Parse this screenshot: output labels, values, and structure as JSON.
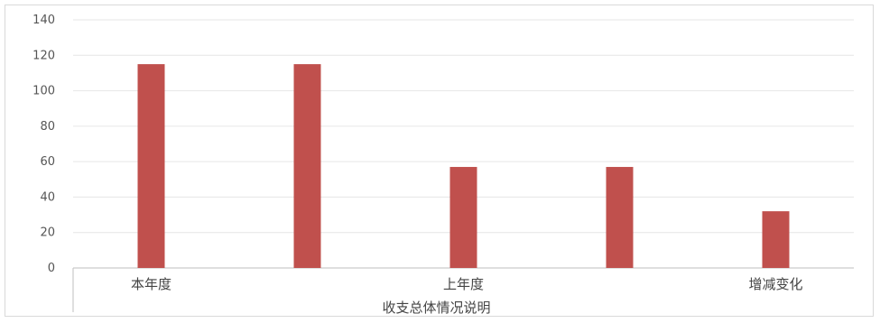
{
  "chart_data": {
    "type": "bar",
    "title": "",
    "xlabel": "收支总体情况说明",
    "ylabel": "",
    "ylim": [
      0,
      140
    ],
    "yticks": [
      0,
      20,
      40,
      60,
      80,
      100,
      120,
      140
    ],
    "grid": true,
    "legend": "none",
    "categories": [
      "本年度",
      "",
      "上年度",
      "",
      "增减变化"
    ],
    "series": [
      {
        "values": [
          115,
          115,
          57,
          57,
          32
        ],
        "color": "#c0504d"
      }
    ]
  }
}
